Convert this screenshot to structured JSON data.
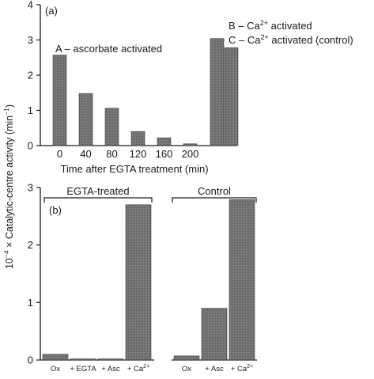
{
  "figure": {
    "ylabel_main": "10",
    "ylabel_exp": "−4",
    "ylabel_rest": " × Catalytic-centre activity (min",
    "ylabel_unit_exp": "−1",
    "ylabel_close": ")"
  },
  "chart_data": [
    {
      "panel": "(a)",
      "type": "bar",
      "xlabel": "Time after EGTA treatment (min)",
      "ylim": [
        0,
        4
      ],
      "yticks": [
        "0",
        "1",
        "2",
        "3",
        "4"
      ],
      "series": [
        {
          "name": "A – ascorbate activated",
          "categories": [
            "0",
            "40",
            "80",
            "120",
            "160",
            "200"
          ],
          "values": [
            2.57,
            1.48,
            1.06,
            0.4,
            0.22,
            0.05
          ]
        },
        {
          "name": "B – Ca",
          "name_sup": "2+",
          "name_suffix": " activated",
          "values": [
            3.04
          ]
        },
        {
          "name": "C – Ca",
          "name_sup": "2+",
          "name_suffix": " activated (control)",
          "values": [
            2.78
          ]
        }
      ],
      "grid": false
    },
    {
      "panel": "(b)",
      "type": "bar",
      "ylim": [
        0,
        3
      ],
      "yticks": [
        "0",
        "1",
        "2",
        "3"
      ],
      "groups": [
        {
          "name": "EGTA-treated",
          "categories": [
            "Ox",
            "+ EGTA",
            "+ Asc",
            "+ Ca"
          ],
          "category_sup": [
            "",
            "",
            "",
            "2+"
          ],
          "values": [
            0.1,
            0.02,
            0.02,
            2.7
          ]
        },
        {
          "name": "Control",
          "categories": [
            "Ox",
            "+ Asc",
            "+ Ca"
          ],
          "category_sup": [
            "",
            "",
            "2+"
          ],
          "values": [
            0.07,
            0.9,
            2.79
          ]
        }
      ],
      "grid": false
    }
  ],
  "colors": {
    "bar_fill": "#767676",
    "axis": "#1a1a1a"
  }
}
